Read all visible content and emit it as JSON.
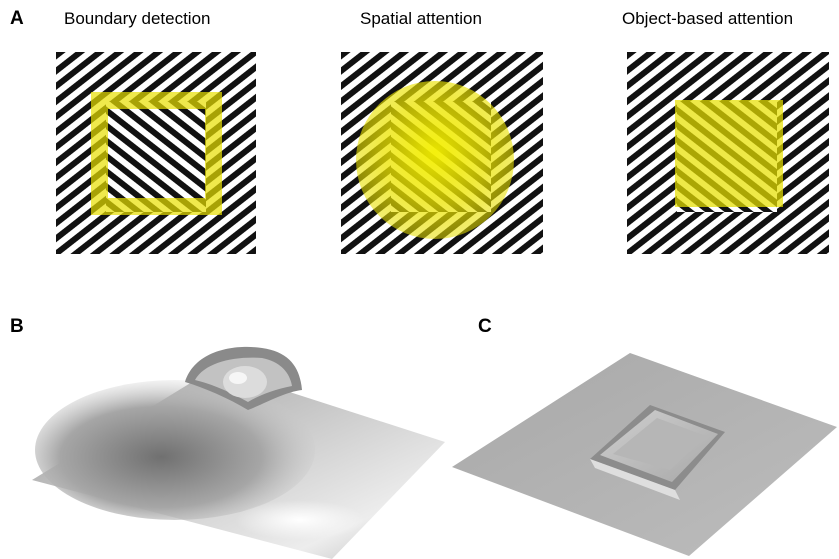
{
  "panels": {
    "a": {
      "letter": "A",
      "titles": [
        "Boundary detection",
        "Spatial attention",
        "Object-based attention"
      ]
    },
    "b": {
      "letter": "B"
    },
    "c": {
      "letter": "C"
    }
  },
  "colors": {
    "highlight": "#e8e000",
    "texture": "#111111",
    "background": "#ffffff"
  }
}
